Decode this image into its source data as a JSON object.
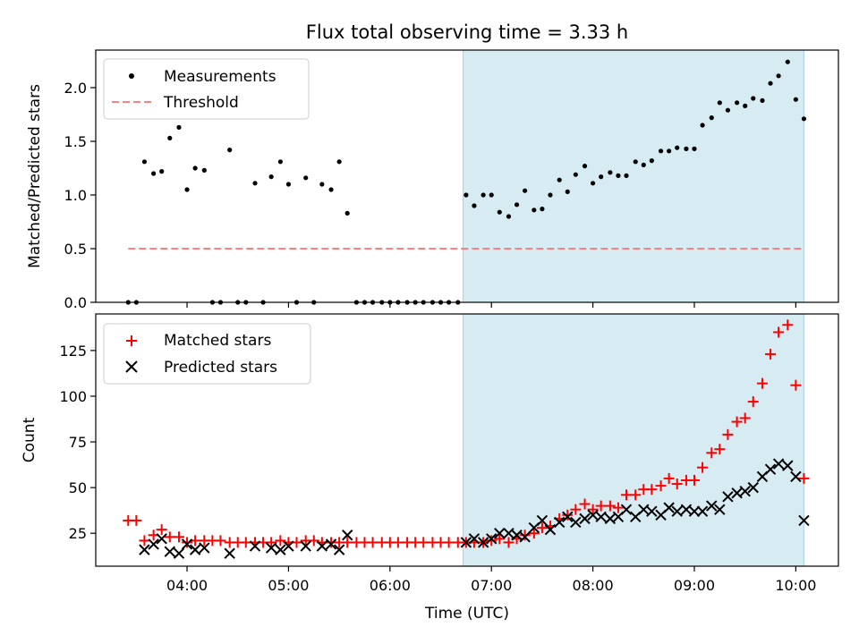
{
  "chart_data": [
    {
      "type": "scatter",
      "title": "Flux total observing time = 3.33 h",
      "xlabel": "",
      "ylabel": "Matched/Predicted stars",
      "ylim": [
        0,
        2.35
      ],
      "yticks": [
        0.0,
        0.5,
        1.0,
        1.5,
        2.0
      ],
      "ytick_labels": [
        "0.0",
        "0.5",
        "1.0",
        "1.5",
        "2.0"
      ],
      "xlim_hours": [
        3.1,
        10.42
      ],
      "grid": false,
      "legend": "upper-left",
      "shaded_interval_hours": [
        6.72,
        10.08
      ],
      "threshold": {
        "name": "Threshold",
        "y": 0.5,
        "x_range_hours": [
          3.42,
          10.08
        ],
        "color": "#ff7f7f",
        "style": "dashed"
      },
      "series": [
        {
          "name": "Measurements",
          "marker": "dot",
          "color": "#000000",
          "x_hours": [
            3.42,
            3.5,
            3.58,
            3.67,
            3.75,
            3.83,
            3.92,
            4.0,
            4.08,
            4.17,
            4.25,
            4.33,
            4.42,
            4.5,
            4.58,
            4.67,
            4.75,
            4.83,
            4.92,
            5.0,
            5.08,
            5.17,
            5.25,
            5.33,
            5.42,
            5.5,
            5.58,
            5.67,
            5.75,
            5.83,
            5.92,
            6.0,
            6.08,
            6.17,
            6.25,
            6.33,
            6.42,
            6.5,
            6.58,
            6.67,
            6.75,
            6.83,
            6.92,
            7.0,
            7.08,
            7.17,
            7.25,
            7.33,
            7.42,
            7.5,
            7.58,
            7.67,
            7.75,
            7.83,
            7.92,
            8.0,
            8.08,
            8.17,
            8.25,
            8.33,
            8.42,
            8.5,
            8.58,
            8.67,
            8.75,
            8.83,
            8.92,
            9.0,
            9.08,
            9.17,
            9.25,
            9.33,
            9.42,
            9.5,
            9.58,
            9.67,
            9.75,
            9.83,
            9.92,
            10.0,
            10.08
          ],
          "y": [
            0,
            0,
            1.31,
            1.2,
            1.22,
            1.53,
            1.63,
            1.05,
            1.25,
            1.23,
            0,
            0,
            1.42,
            0,
            0,
            1.11,
            0,
            1.17,
            1.31,
            1.1,
            0,
            1.16,
            0,
            1.1,
            1.05,
            1.31,
            0.83,
            0,
            0,
            0,
            0,
            0,
            0,
            0,
            0,
            0,
            0,
            0,
            0,
            0,
            1.0,
            0.9,
            1.0,
            1.0,
            0.84,
            0.8,
            0.91,
            1.04,
            0.86,
            0.87,
            1.0,
            1.14,
            1.03,
            1.19,
            1.27,
            1.11,
            1.17,
            1.21,
            1.18,
            1.18,
            1.31,
            1.28,
            1.32,
            1.41,
            1.41,
            1.44,
            1.43,
            1.43,
            1.65,
            1.72,
            1.86,
            1.79,
            1.86,
            1.83,
            1.9,
            1.88,
            2.04,
            2.11,
            2.24,
            1.89,
            1.71
          ]
        }
      ]
    },
    {
      "type": "scatter",
      "title": "",
      "xlabel": "Time (UTC)",
      "ylabel": "Count",
      "ylim": [
        7,
        145
      ],
      "yticks": [
        25,
        50,
        75,
        100,
        125
      ],
      "ytick_labels": [
        "25",
        "50",
        "75",
        "100",
        "125"
      ],
      "xlim_hours": [
        3.1,
        10.42
      ],
      "xticks_hours": [
        4,
        5,
        6,
        7,
        8,
        9,
        10
      ],
      "xtick_labels": [
        "04:00",
        "05:00",
        "06:00",
        "07:00",
        "08:00",
        "09:00",
        "10:00"
      ],
      "grid": false,
      "legend": "upper-left",
      "shaded_interval_hours": [
        6.72,
        10.08
      ],
      "series": [
        {
          "name": "Matched stars",
          "marker": "plus",
          "color": "#ff0000",
          "x_hours": [
            3.42,
            3.5,
            3.58,
            3.67,
            3.75,
            3.83,
            3.92,
            4.0,
            4.08,
            4.17,
            4.25,
            4.33,
            4.42,
            4.5,
            4.58,
            4.67,
            4.75,
            4.83,
            4.92,
            5.0,
            5.08,
            5.17,
            5.25,
            5.33,
            5.42,
            5.5,
            5.58,
            5.67,
            5.75,
            5.83,
            5.92,
            6.0,
            6.08,
            6.17,
            6.25,
            6.33,
            6.42,
            6.5,
            6.58,
            6.67,
            6.75,
            6.83,
            6.92,
            7.0,
            7.08,
            7.17,
            7.25,
            7.33,
            7.42,
            7.5,
            7.58,
            7.67,
            7.75,
            7.83,
            7.92,
            8.0,
            8.08,
            8.17,
            8.25,
            8.33,
            8.42,
            8.5,
            8.58,
            8.67,
            8.75,
            8.83,
            8.92,
            9.0,
            9.08,
            9.17,
            9.25,
            9.33,
            9.42,
            9.5,
            9.58,
            9.67,
            9.75,
            9.83,
            9.92,
            10.0,
            10.08
          ],
          "y": [
            32,
            32,
            21,
            24,
            27,
            23,
            23,
            20,
            21,
            21,
            21,
            21,
            20,
            20,
            20,
            20,
            20,
            20,
            21,
            20,
            20,
            21,
            21,
            20,
            20,
            20,
            20,
            20,
            20,
            20,
            20,
            20,
            20,
            20,
            20,
            20,
            20,
            20,
            20,
            20,
            20,
            20,
            20,
            21,
            22,
            20,
            22,
            24,
            25,
            28,
            29,
            33,
            35,
            38,
            41,
            38,
            40,
            40,
            39,
            46,
            46,
            49,
            49,
            51,
            55,
            52,
            54,
            54,
            61,
            69,
            71,
            79,
            86,
            88,
            97,
            107,
            123,
            135,
            139,
            106,
            55
          ]
        },
        {
          "name": "Predicted stars",
          "marker": "x",
          "color": "#000000",
          "x_hours": [
            3.58,
            3.67,
            3.75,
            3.83,
            3.92,
            4.0,
            4.08,
            4.17,
            4.42,
            4.67,
            4.83,
            4.92,
            5.0,
            5.17,
            5.33,
            5.42,
            5.5,
            5.58,
            6.75,
            6.83,
            6.92,
            7.0,
            7.08,
            7.17,
            7.25,
            7.33,
            7.42,
            7.5,
            7.58,
            7.67,
            7.75,
            7.83,
            7.92,
            8.0,
            8.08,
            8.17,
            8.25,
            8.33,
            8.42,
            8.5,
            8.58,
            8.67,
            8.75,
            8.83,
            8.92,
            9.0,
            9.08,
            9.17,
            9.25,
            9.33,
            9.42,
            9.5,
            9.58,
            9.67,
            9.75,
            9.83,
            9.92,
            10.0,
            10.08
          ],
          "y": [
            16,
            19,
            22,
            15,
            14,
            19,
            16,
            17,
            14,
            18,
            17,
            16,
            18,
            18,
            18,
            19,
            16,
            24,
            20,
            22,
            20,
            22,
            25,
            25,
            24,
            23,
            28,
            32,
            27,
            31,
            34,
            31,
            33,
            35,
            34,
            33,
            34,
            38,
            34,
            38,
            37,
            35,
            39,
            37,
            38,
            37,
            37,
            40,
            38,
            45,
            47,
            48,
            50,
            56,
            60,
            63,
            62,
            56,
            32
          ]
        }
      ]
    }
  ]
}
